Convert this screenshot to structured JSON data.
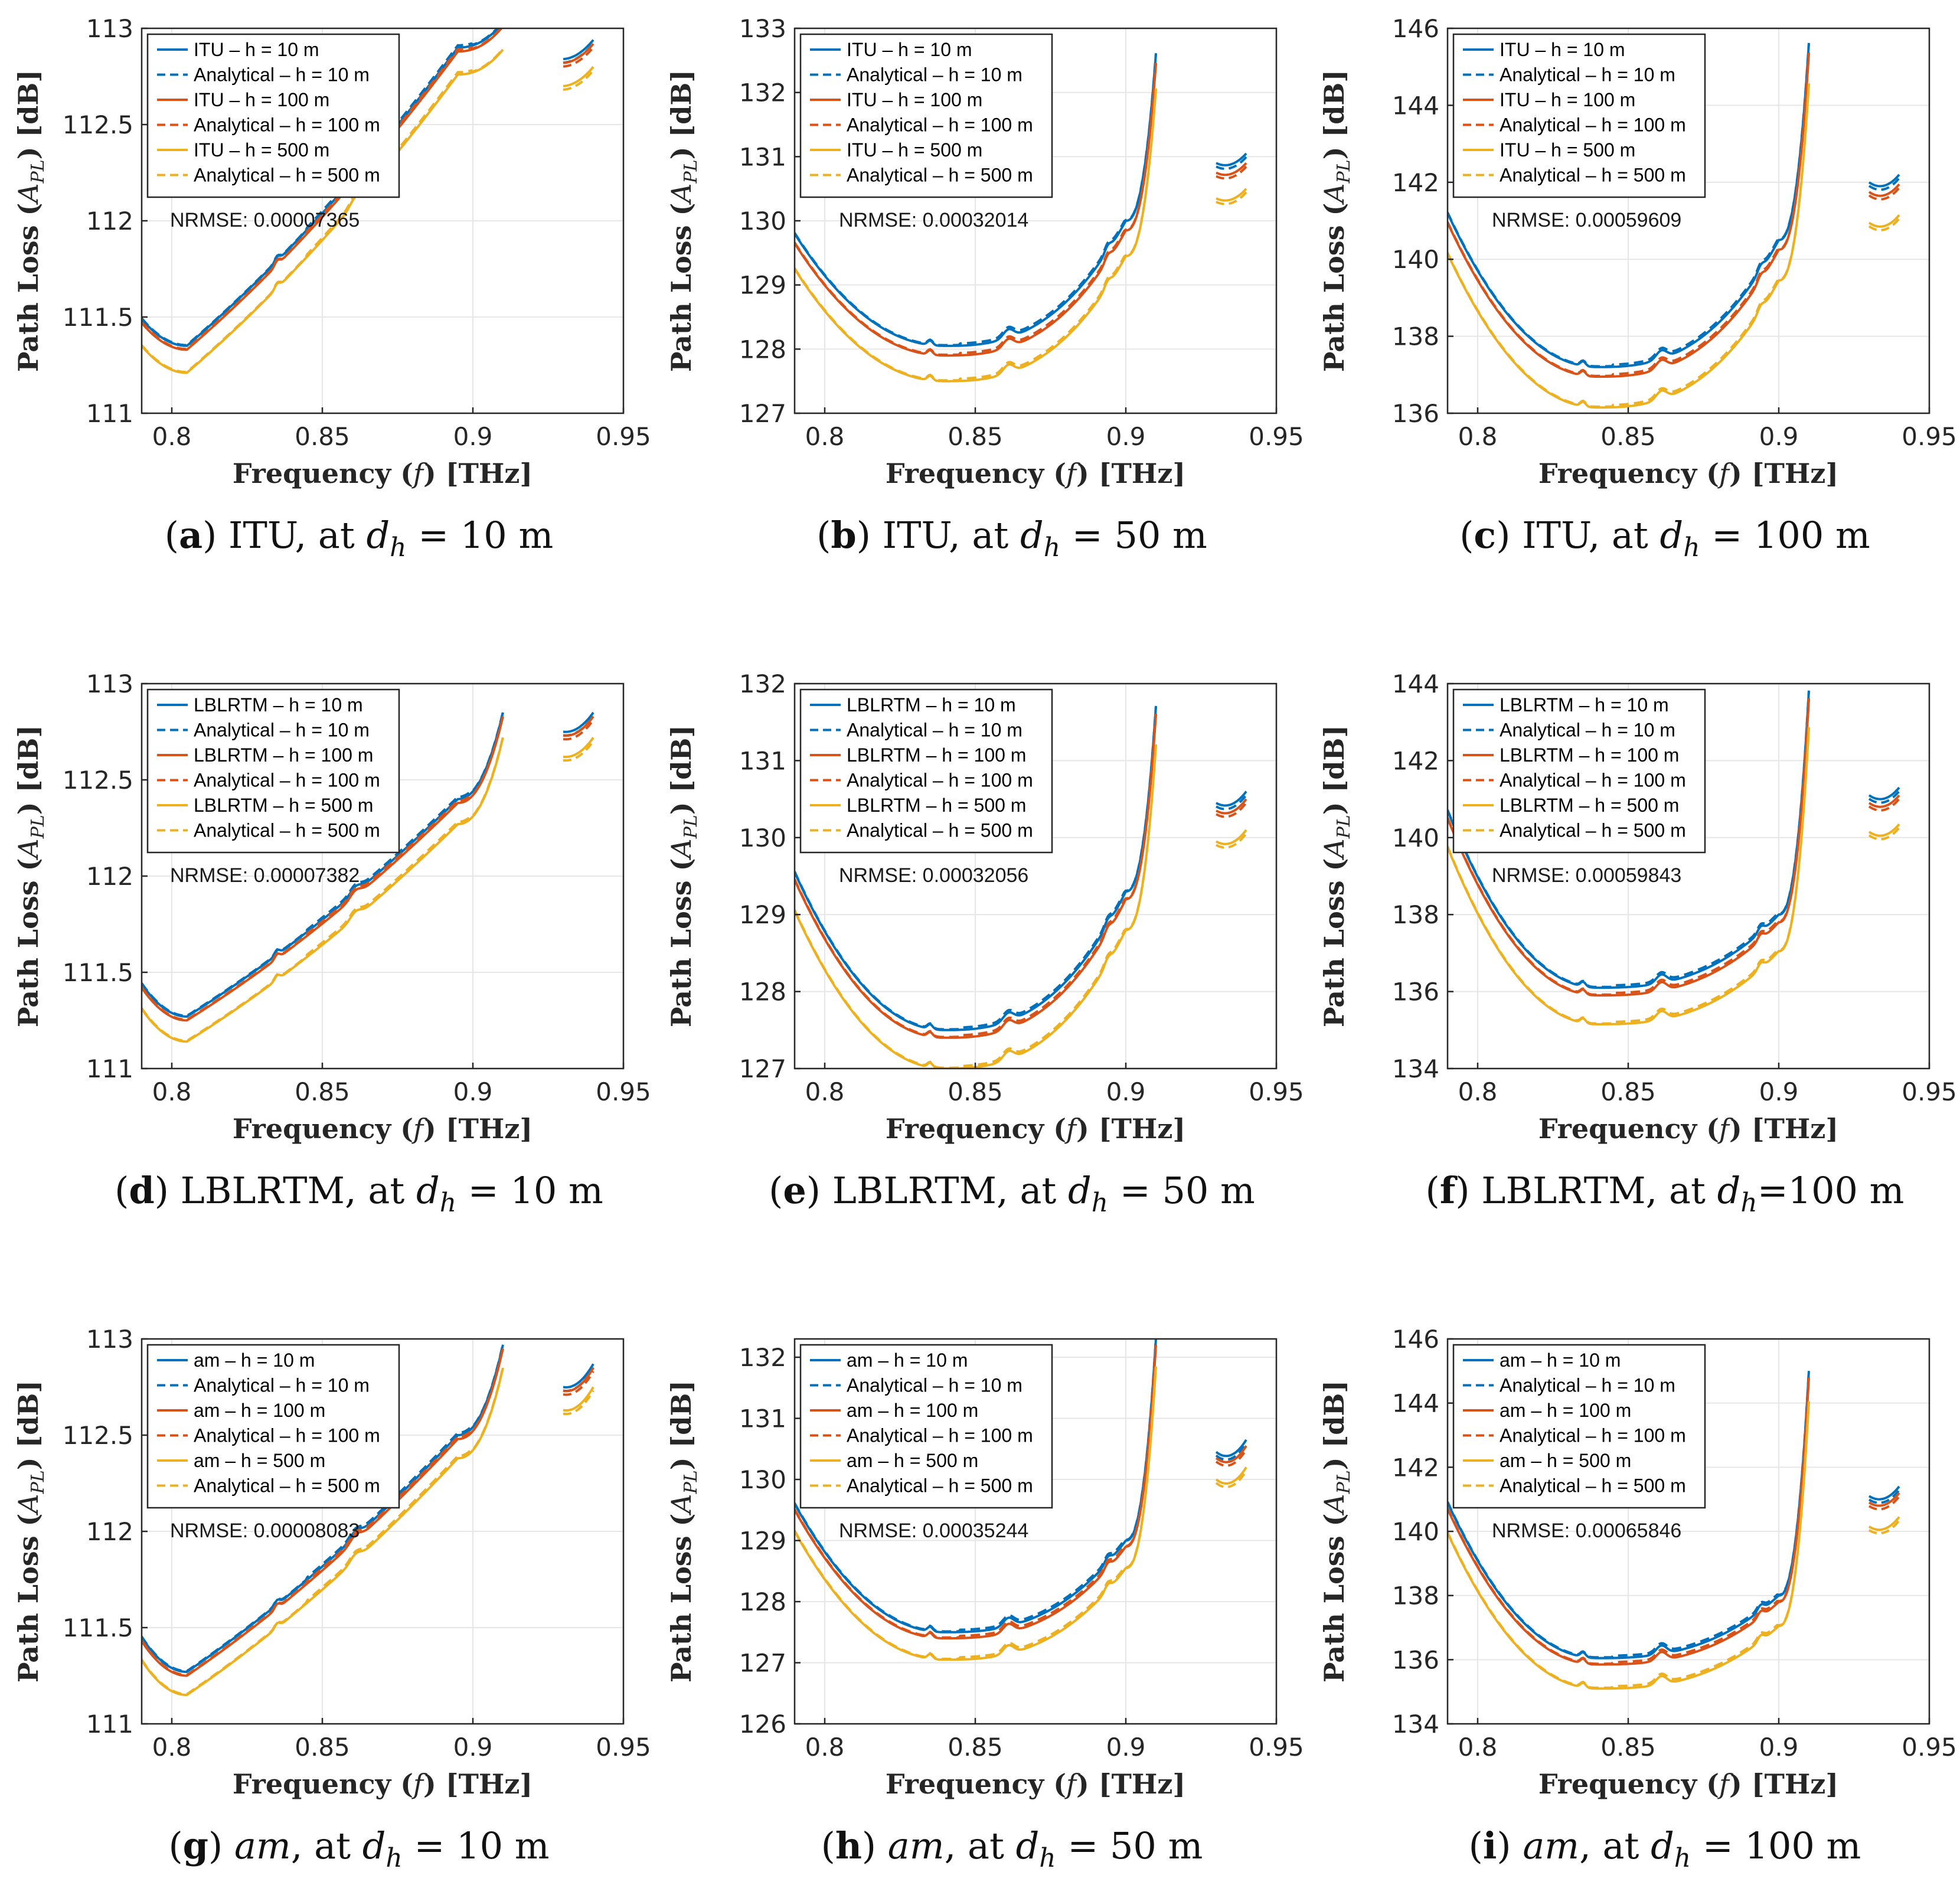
{
  "figure": {
    "colors": {
      "h10": "#0072BD",
      "h100": "#D95319",
      "h500": "#EDB120",
      "grid": "#e6e6e6",
      "axis": "#262626"
    },
    "x_label": "Frequency",
    "x_symbol": "f",
    "x_unit": "[THz]",
    "y_label": "Path Loss",
    "y_symbol": "A",
    "y_subscript": "PL",
    "y_unit": "[dB]"
  },
  "chart_data": [
    {
      "id": "a",
      "type": "line",
      "model": "ITU",
      "kind": "mid",
      "caption": {
        "letter": "a",
        "model": "ITU",
        "italic_model": false,
        "at": ", at ",
        "var": "d",
        "sub": "h",
        "eq": " = 10 m"
      },
      "xlim": [
        0.79,
        0.95
      ],
      "ylim": [
        111,
        113
      ],
      "xticks": [
        0.8,
        0.85,
        0.9,
        0.95
      ],
      "xtick_labels": [
        "0.8",
        "0.85",
        "0.9",
        "0.95"
      ],
      "yticks": [
        111,
        111.5,
        112,
        112.5,
        113
      ],
      "ytick_labels": [
        "111",
        "111.5",
        "112",
        "112.5",
        "113"
      ],
      "legend": [
        "ITU – h = 10 m",
        "Analytical – h = 10 m",
        "ITU – h = 100 m",
        "Analytical – h = 100 m",
        "ITU – h = 500 m",
        "Analytical – h = 500 m"
      ],
      "nrmse": "NRMSE: 0.00007365",
      "base": [
        111.49,
        111.35,
        112.9,
        113.03
      ],
      "offsets": [
        0,
        -0.02,
        -0.14
      ],
      "end_points": [
        [
          0.93,
          112.84
        ],
        [
          0.935,
          112.86
        ],
        [
          0.94,
          112.94
        ]
      ]
    },
    {
      "id": "b",
      "type": "line",
      "model": "ITU",
      "kind": "u",
      "caption": {
        "letter": "b",
        "model": "ITU",
        "italic_model": false,
        "at": ", at ",
        "var": "d",
        "sub": "h",
        "eq": " = 50 m"
      },
      "xlim": [
        0.79,
        0.95
      ],
      "ylim": [
        127,
        133
      ],
      "xticks": [
        0.8,
        0.85,
        0.9,
        0.95
      ],
      "xtick_labels": [
        "0.8",
        "0.85",
        "0.9",
        "0.95"
      ],
      "yticks": [
        127,
        128,
        129,
        130,
        131,
        132,
        133
      ],
      "ytick_labels": [
        "127",
        "128",
        "129",
        "130",
        "131",
        "132",
        "133"
      ],
      "legend": [
        "ITU – h = 10 m",
        "Analytical – h = 10 m",
        "ITU – h = 100 m",
        "Analytical – h = 100 m",
        "ITU – h = 500 m",
        "Analytical – h = 500 m"
      ],
      "nrmse": "NRMSE: 0.00032014",
      "base": [
        129.8,
        128.05,
        130.0,
        132.6
      ],
      "offsets": [
        0,
        -0.15,
        -0.55
      ],
      "end_points": [
        [
          0.93,
          130.9
        ],
        [
          0.935,
          130.85
        ],
        [
          0.94,
          131.05
        ]
      ]
    },
    {
      "id": "c",
      "type": "line",
      "model": "ITU",
      "kind": "u",
      "caption": {
        "letter": "c",
        "model": "ITU",
        "italic_model": false,
        "at": ", at ",
        "var": "d",
        "sub": "h",
        "eq": " = 100 m"
      },
      "xlim": [
        0.79,
        0.95
      ],
      "ylim": [
        136,
        146
      ],
      "xticks": [
        0.8,
        0.85,
        0.9,
        0.95
      ],
      "xtick_labels": [
        "0.8",
        "0.85",
        "0.9",
        "0.95"
      ],
      "yticks": [
        136,
        138,
        140,
        142,
        144,
        146
      ],
      "ytick_labels": [
        "136",
        "138",
        "140",
        "142",
        "144",
        "146"
      ],
      "legend": [
        "ITU – h = 10 m",
        "Analytical – h = 10 m",
        "ITU – h = 100 m",
        "Analytical – h = 100 m",
        "ITU – h = 500 m",
        "Analytical – h = 500 m"
      ],
      "nrmse": "NRMSE: 0.00059609",
      "base": [
        141.2,
        137.2,
        140.5,
        145.6
      ],
      "offsets": [
        0,
        -0.25,
        -1.05
      ],
      "end_points": [
        [
          0.93,
          142.0
        ],
        [
          0.935,
          141.85
        ],
        [
          0.94,
          142.2
        ]
      ]
    },
    {
      "id": "d",
      "type": "line",
      "model": "LBLRTM",
      "kind": "mid",
      "caption": {
        "letter": "d",
        "model": "LBLRTM",
        "italic_model": false,
        "at": ", at ",
        "var": "d",
        "sub": "h",
        "eq": " = 10 m"
      },
      "xlim": [
        0.79,
        0.95
      ],
      "ylim": [
        111,
        113
      ],
      "xticks": [
        0.8,
        0.85,
        0.9,
        0.95
      ],
      "xtick_labels": [
        "0.8",
        "0.85",
        "0.9",
        "0.95"
      ],
      "yticks": [
        111,
        111.5,
        112,
        112.5,
        113
      ],
      "ytick_labels": [
        "111",
        "111.5",
        "112",
        "112.5",
        "113"
      ],
      "legend": [
        "LBLRTM – h = 10 m",
        "Analytical – h = 10 m",
        "LBLRTM – h = 100 m",
        "Analytical – h = 100 m",
        "LBLRTM – h = 500 m",
        "Analytical – h = 500 m"
      ],
      "nrmse": "NRMSE: 0.00007382",
      "base": [
        111.44,
        111.27,
        112.4,
        112.85
      ],
      "offsets": [
        0,
        -0.02,
        -0.13
      ],
      "end_points": [
        [
          0.93,
          112.75
        ],
        [
          0.935,
          112.76
        ],
        [
          0.94,
          112.85
        ]
      ]
    },
    {
      "id": "e",
      "type": "line",
      "model": "LBLRTM",
      "kind": "u",
      "caption": {
        "letter": "e",
        "model": "LBLRTM",
        "italic_model": false,
        "at": ", at ",
        "var": "d",
        "sub": "h",
        "eq": " = 50 m"
      },
      "xlim": [
        0.79,
        0.95
      ],
      "ylim": [
        127,
        132
      ],
      "xticks": [
        0.8,
        0.85,
        0.9,
        0.95
      ],
      "xtick_labels": [
        "0.8",
        "0.85",
        "0.9",
        "0.95"
      ],
      "yticks": [
        127,
        128,
        129,
        130,
        131,
        132
      ],
      "ytick_labels": [
        "127",
        "128",
        "129",
        "130",
        "131",
        "132"
      ],
      "legend": [
        "LBLRTM – h = 10 m",
        "Analytical – h = 10 m",
        "LBLRTM – h = 100 m",
        "Analytical – h = 100 m",
        "LBLRTM – h = 500 m",
        "Analytical – h = 500 m"
      ],
      "nrmse": "NRMSE: 0.00032056",
      "base": [
        129.55,
        127.5,
        129.3,
        131.7
      ],
      "offsets": [
        0,
        -0.1,
        -0.5
      ],
      "end_points": [
        [
          0.93,
          130.45
        ],
        [
          0.935,
          130.4
        ],
        [
          0.94,
          130.6
        ]
      ]
    },
    {
      "id": "f",
      "type": "line",
      "model": "LBLRTM",
      "kind": "u",
      "caption": {
        "letter": "f",
        "model": "LBLRTM",
        "italic_model": false,
        "at": ", at ",
        "var": "d",
        "sub": "h",
        "eq": "=100 m"
      },
      "xlim": [
        0.79,
        0.95
      ],
      "ylim": [
        134,
        144
      ],
      "xticks": [
        0.8,
        0.85,
        0.9,
        0.95
      ],
      "xtick_labels": [
        "0.8",
        "0.85",
        "0.9",
        "0.95"
      ],
      "yticks": [
        134,
        136,
        138,
        140,
        142,
        144
      ],
      "ytick_labels": [
        "134",
        "136",
        "138",
        "140",
        "142",
        "144"
      ],
      "legend": [
        "LBLRTM – h = 10 m",
        "Analytical – h = 10 m",
        "LBLRTM – h = 100 m",
        "Analytical – h = 100 m",
        "LBLRTM – h = 500 m",
        "Analytical – h = 500 m"
      ],
      "nrmse": "NRMSE: 0.00059843",
      "base": [
        140.7,
        136.1,
        138.0,
        143.8
      ],
      "offsets": [
        0,
        -0.2,
        -0.95
      ],
      "end_points": [
        [
          0.93,
          141.1
        ],
        [
          0.935,
          140.95
        ],
        [
          0.94,
          141.3
        ]
      ]
    },
    {
      "id": "g",
      "type": "line",
      "model": "am",
      "kind": "mid",
      "caption": {
        "letter": "g",
        "model": "am",
        "italic_model": true,
        "at": ", at ",
        "var": "d",
        "sub": "h",
        "eq": " = 10 m"
      },
      "xlim": [
        0.79,
        0.95
      ],
      "ylim": [
        111,
        113
      ],
      "xticks": [
        0.8,
        0.85,
        0.9,
        0.95
      ],
      "xtick_labels": [
        "0.8",
        "0.85",
        "0.9",
        "0.95"
      ],
      "yticks": [
        111,
        111.5,
        112,
        112.5,
        113
      ],
      "ytick_labels": [
        "111",
        "111.5",
        "112",
        "112.5",
        "113"
      ],
      "legend": [
        "am – h = 10 m",
        "Analytical – h = 10 m",
        "am – h = 100 m",
        "Analytical – h = 100 m",
        "am – h = 500 m",
        "Analytical – h = 500 m"
      ],
      "nrmse": "NRMSE: 0.00008083",
      "base": [
        111.45,
        111.27,
        112.5,
        112.97
      ],
      "offsets": [
        0,
        -0.02,
        -0.12
      ],
      "end_points": [
        [
          0.93,
          112.75
        ],
        [
          0.935,
          112.76
        ],
        [
          0.94,
          112.87
        ]
      ]
    },
    {
      "id": "h",
      "type": "line",
      "model": "am",
      "kind": "u",
      "caption": {
        "letter": "h",
        "model": "am",
        "italic_model": true,
        "at": ", at ",
        "var": "d",
        "sub": "h",
        "eq": " = 50 m"
      },
      "xlim": [
        0.79,
        0.95
      ],
      "ylim": [
        126,
        132.3
      ],
      "xticks": [
        0.8,
        0.85,
        0.9,
        0.95
      ],
      "xtick_labels": [
        "0.8",
        "0.85",
        "0.9",
        "0.95"
      ],
      "yticks": [
        126,
        127,
        128,
        129,
        130,
        131,
        132
      ],
      "ytick_labels": [
        "126",
        "127",
        "128",
        "129",
        "130",
        "131",
        "132"
      ],
      "legend": [
        "am – h = 10 m",
        "Analytical – h = 10 m",
        "am – h = 100 m",
        "Analytical – h = 100 m",
        "am – h = 500 m",
        "Analytical – h = 500 m"
      ],
      "nrmse": "NRMSE: 0.00035244",
      "base": [
        129.6,
        127.5,
        129.0,
        132.3
      ],
      "offsets": [
        0,
        -0.1,
        -0.45
      ],
      "end_points": [
        [
          0.93,
          130.45
        ],
        [
          0.935,
          130.35
        ],
        [
          0.94,
          130.65
        ]
      ]
    },
    {
      "id": "i",
      "type": "line",
      "model": "am",
      "kind": "u",
      "caption": {
        "letter": "i",
        "model": "am",
        "italic_model": true,
        "at": ", at ",
        "var": "d",
        "sub": "h",
        "eq": " = 100 m"
      },
      "xlim": [
        0.79,
        0.95
      ],
      "ylim": [
        134,
        146
      ],
      "xticks": [
        0.8,
        0.85,
        0.9,
        0.95
      ],
      "xtick_labels": [
        "0.8",
        "0.85",
        "0.9",
        "0.95"
      ],
      "yticks": [
        134,
        136,
        138,
        140,
        142,
        144,
        146
      ],
      "ytick_labels": [
        "134",
        "136",
        "138",
        "140",
        "142",
        "144",
        "146"
      ],
      "legend": [
        "am – h = 10 m",
        "Analytical – h = 10 m",
        "am – h = 100 m",
        "Analytical – h = 100 m",
        "am – h = 500 m",
        "Analytical – h = 500 m"
      ],
      "nrmse": "NRMSE: 0.00065846",
      "base": [
        140.9,
        136.05,
        138.0,
        145.0
      ],
      "offsets": [
        0,
        -0.2,
        -0.95
      ],
      "end_points": [
        [
          0.93,
          141.1
        ],
        [
          0.935,
          140.95
        ],
        [
          0.94,
          141.4
        ]
      ]
    }
  ]
}
